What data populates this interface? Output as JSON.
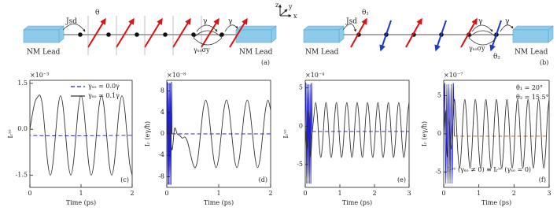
{
  "diagrams": {
    "a": {
      "panel": "(a)",
      "coupling": "Jsd",
      "angle": "θ",
      "hop": [
        "γ",
        "γ"
      ],
      "soc": "γₛₒσy",
      "leads": [
        "NM Lead",
        "NM Lead"
      ]
    },
    "b": {
      "panel": "(b)",
      "coupling": "Jsd",
      "angles": [
        "θ₁",
        "θ₂"
      ],
      "hop": [
        "γ",
        "γ"
      ],
      "soc": "γₛₒσy",
      "leads": [
        "NM Lead",
        "NM Lead"
      ]
    },
    "axes_labels": [
      "z",
      "y",
      "x"
    ]
  },
  "chart_data": [
    {
      "type": "line",
      "panel_label": "(c)",
      "x_label": "Time (ps)",
      "y_label": "Iᵣˢᶻ",
      "multiplier": "×10⁻³",
      "xlim": [
        0,
        2
      ],
      "xticks": [
        0,
        1,
        2
      ],
      "ylim": [
        -1.9,
        1.6
      ],
      "yticks": [
        1.5,
        {
          "value": 0,
          "label": "0.0"
        },
        -1.5
      ],
      "legend": "upper right",
      "series": [
        {
          "name": "γₛₒ = 0.0γ",
          "color": "#1f1fd6",
          "dash": "dashed",
          "x": [
            0,
            0.02,
            2
          ],
          "values": [
            0,
            -0.2,
            -0.2
          ]
        },
        {
          "name": "γₛₒ = 0.1γ",
          "color": "#333333",
          "dash": "solid",
          "x": [
            0,
            0.05,
            0.1,
            0.15,
            0.2,
            0.25,
            0.3,
            0.35,
            0.4,
            0.45,
            0.5,
            0.55,
            0.6,
            0.65,
            0.7,
            0.75,
            0.8,
            0.85,
            0.9,
            0.95,
            1,
            1.05,
            1.1,
            1.15,
            1.2,
            1.25,
            1.3,
            1.35,
            1.4,
            1.45,
            1.5,
            1.55,
            1.6,
            1.65,
            1.7,
            1.75,
            1.8,
            1.85,
            1.9,
            1.95,
            2
          ],
          "values": [
            0,
            0.5,
            0.9,
            1.05,
            1.1,
            0.72,
            -0.2,
            -1.12,
            -1.5,
            -1.12,
            -0.2,
            0.72,
            1.1,
            0.72,
            -0.2,
            -1.12,
            -1.5,
            -1.12,
            -0.2,
            0.72,
            1.1,
            0.72,
            -0.2,
            -1.12,
            -1.5,
            -1.12,
            -0.2,
            0.72,
            1.1,
            0.72,
            -0.2,
            -1.12,
            -1.5,
            -1.12,
            -0.2,
            0.72,
            1.1,
            0.72,
            -0.2,
            -1.12,
            -1.5
          ]
        }
      ]
    },
    {
      "type": "line",
      "panel_label": "(d)",
      "x_label": "Time (ps)",
      "y_label": "Iᵣ (eγ/ħ)",
      "multiplier": "×10⁻⁸",
      "xlim": [
        0,
        2
      ],
      "xticks": [
        0,
        1,
        2
      ],
      "ylim": [
        -10,
        10
      ],
      "yticks": [
        8,
        4,
        0,
        -4,
        -8
      ],
      "series": [
        {
          "color": "#1f1fd6",
          "dash": "solid",
          "x": [
            0,
            0.01,
            0.02,
            0.03,
            0.04,
            0.05,
            0.06,
            0.07,
            0.08,
            0.09,
            0.1
          ],
          "values": [
            0,
            9.5,
            -9.5,
            9.5,
            -9.5,
            9.5,
            -9.5,
            9.5,
            -9.5,
            9.5,
            0
          ]
        },
        {
          "color": "#1f1fd6",
          "dash": "dashed",
          "x": [
            0.1,
            2
          ],
          "values": [
            0,
            0
          ]
        },
        {
          "color": "#333333",
          "dash": "solid",
          "x": [
            0,
            0.05,
            0.1,
            0.15,
            0.2,
            0.25,
            0.3,
            0.35,
            0.4,
            0.45,
            0.5,
            0.55,
            0.6,
            0.65,
            0.7,
            0.75,
            0.8,
            0.85,
            0.9,
            0.95,
            1,
            1.05,
            1.1,
            1.15,
            1.2,
            1.25,
            1.3,
            1.35,
            1.4,
            1.45,
            1.5,
            1.55,
            1.6,
            1.65,
            1.7,
            1.75,
            1.8,
            1.85,
            1.9,
            1.95,
            2
          ],
          "values": [
            0,
            2,
            -3,
            1,
            0,
            -0.3,
            -0.8,
            -0.6,
            -1.5,
            -3.5,
            -5.5,
            -6.3,
            -4.45,
            0,
            4.45,
            6.3,
            4.45,
            0,
            -4.45,
            -6.3,
            -4.45,
            0,
            4.45,
            6.3,
            4.45,
            0,
            -4.45,
            -6.3,
            -4.45,
            0,
            4.45,
            6.3,
            4.45,
            0,
            -4.45,
            -6.3,
            -4.45,
            0,
            4.45,
            6.3,
            4.45
          ]
        }
      ]
    },
    {
      "type": "line",
      "panel_label": "(e)",
      "x_label": "Time (ps)",
      "y_label": "Iᵣˢᶻ",
      "multiplier": "×10⁻⁴",
      "xlim": [
        0,
        3
      ],
      "xticks": [
        0,
        1,
        2,
        3
      ],
      "ylim": [
        -8,
        6
      ],
      "yticks": [
        5,
        0,
        -5
      ],
      "series": [
        {
          "color": "#1f1fd6",
          "dash": "solid",
          "x": [
            0,
            0.02,
            0.04,
            0.06,
            0.08,
            0.1,
            0.12,
            0.14,
            0.16,
            0.18,
            0.2
          ],
          "values": [
            0,
            5.5,
            -7.5,
            5.5,
            -7.5,
            5.5,
            -7.5,
            5.5,
            -7.5,
            5.5,
            -0.7
          ]
        },
        {
          "color": "#1f1fd6",
          "dash": "dashed",
          "x": [
            0.2,
            3
          ],
          "values": [
            -0.7,
            -0.7
          ]
        },
        {
          "color": "#333333",
          "dash": "solid",
          "x": [
            0,
            0.05,
            0.1,
            0.15,
            0.2,
            0.25,
            0.3,
            0.35,
            0.4,
            0.45,
            0.5,
            0.55,
            0.6,
            0.65,
            0.7,
            0.75,
            0.8,
            0.85,
            0.9,
            0.95,
            1,
            1.05,
            1.1,
            1.15,
            1.2,
            1.25,
            1.3,
            1.35,
            1.4,
            1.45,
            1.5,
            1.55,
            1.6,
            1.65,
            1.7,
            1.75,
            1.8,
            1.85,
            1.9,
            1.95,
            2,
            2.05,
            2.1,
            2.15,
            2.2,
            2.25,
            2.3,
            2.35,
            2.4,
            2.45,
            2.5,
            2.55,
            2.6,
            2.65,
            2.7,
            2.75,
            2.8,
            2.85,
            2.9,
            2.95,
            3
          ],
          "values": [
            0,
            -3,
            2,
            -4,
            -1,
            1.3,
            3.1,
            1.3,
            -2.3,
            -4.1,
            -2.3,
            1.3,
            3.1,
            1.3,
            -2.3,
            -4.1,
            -2.3,
            1.3,
            3.1,
            1.3,
            -2.3,
            -4.1,
            -2.3,
            1.3,
            3.1,
            1.3,
            -2.3,
            -4.1,
            -2.3,
            1.3,
            3.1,
            1.3,
            -2.3,
            -4.1,
            -2.3,
            1.3,
            3.1,
            1.3,
            -2.3,
            -4.1,
            -2.3,
            1.3,
            3.1,
            1.3,
            -2.3,
            -4.1,
            -2.3,
            1.3,
            3.1,
            1.3,
            -2.3,
            -4.1,
            -2.3,
            1.3,
            3.1,
            1.3,
            -2.3,
            -4.1,
            -2.3,
            1.3,
            3.1
          ]
        }
      ]
    },
    {
      "type": "line",
      "panel_label": "(f)",
      "x_label": "Time (ps)",
      "y_label": "Iᵣ (eγ/ħ)",
      "multiplier": "×10⁻⁷",
      "xlim": [
        0,
        3
      ],
      "xticks": [
        0,
        1,
        2,
        3
      ],
      "ylim": [
        -7,
        7
      ],
      "yticks": [
        5,
        0,
        -5
      ],
      "annotations": [
        {
          "text": "θ₁ = 20°",
          "color": "#222222"
        },
        {
          "text": "θ₂ = 15.5°",
          "color": "#222222"
        },
        {
          "text": "Iᵣˢᶜ (γₛₒ ≠ 0) ≡ Iᵣˢᶜ (γₛₒ = 0)",
          "color": "#b5651d"
        }
      ],
      "series": [
        {
          "color": "#1f1fd6",
          "dash": "solid",
          "x": [
            0,
            0.03,
            0.06,
            0.09,
            0.12,
            0.15,
            0.18,
            0.21,
            0.24,
            0.27,
            0.3
          ],
          "values": [
            0,
            6.5,
            -6.5,
            6.5,
            -6.5,
            6.5,
            -6.5,
            6.5,
            -6.5,
            6.5,
            -0.3
          ]
        },
        {
          "color": "#b5651d",
          "dash": "dashed",
          "x": [
            0.3,
            3
          ],
          "values": [
            -0.3,
            -0.3
          ]
        },
        {
          "color": "#333333",
          "dash": "solid",
          "x": [
            0,
            0.05,
            0.1,
            0.15,
            0.2,
            0.25,
            0.3,
            0.35,
            0.4,
            0.45,
            0.5,
            0.55,
            0.6,
            0.65,
            0.7,
            0.75,
            0.8,
            0.85,
            0.9,
            0.95,
            1,
            1.05,
            1.1,
            1.15,
            1.2,
            1.25,
            1.3,
            1.35,
            1.4,
            1.45,
            1.5,
            1.55,
            1.6,
            1.65,
            1.7,
            1.75,
            1.8,
            1.85,
            1.9,
            1.95,
            2,
            2.05,
            2.1,
            2.15,
            2.2,
            2.25,
            2.3,
            2.35,
            2.4,
            2.45,
            2.5,
            2.55,
            2.6,
            2.65,
            2.7,
            2.75,
            2.8,
            2.85,
            2.9,
            2.95,
            3
          ],
          "values": [
            0,
            3,
            -3,
            2,
            -2,
            1,
            4.5,
            2.25,
            -2.25,
            -4.5,
            -2.25,
            2.25,
            4.5,
            2.25,
            -2.25,
            -4.5,
            -2.25,
            2.25,
            4.5,
            2.25,
            -2.25,
            -4.5,
            -2.25,
            2.25,
            4.5,
            2.25,
            -2.25,
            -4.5,
            -2.25,
            2.25,
            4.5,
            2.25,
            -2.25,
            -4.5,
            -2.25,
            2.25,
            4.5,
            2.25,
            -2.25,
            -4.5,
            -2.25,
            2.25,
            4.5,
            2.25,
            -2.25,
            -4.5,
            -2.25,
            2.25,
            4.5,
            2.25,
            -2.25,
            -4.5,
            -2.25,
            2.25,
            4.5,
            2.25,
            -2.25,
            -4.5,
            -2.25,
            2.25,
            4.5
          ]
        }
      ]
    }
  ]
}
